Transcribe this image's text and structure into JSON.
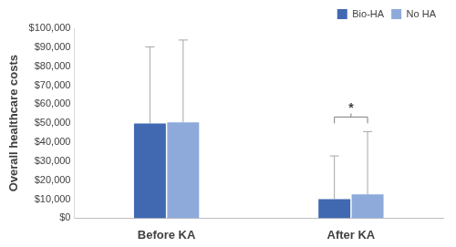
{
  "chart_data": {
    "type": "bar",
    "categories": [
      "Before KA",
      "After KA"
    ],
    "series": [
      {
        "name": "Bio-HA",
        "color": "#4169b2",
        "values": [
          49800,
          10000
        ],
        "errors": [
          40400,
          22800
        ]
      },
      {
        "name": "No HA",
        "color": "#8eaadb",
        "values": [
          50500,
          12600
        ],
        "errors": [
          43300,
          33000
        ]
      }
    ],
    "y_label": "Overall healthcare costs",
    "ylim": [
      0,
      100000
    ],
    "yticks": [
      {
        "value": 0,
        "label": "$0"
      },
      {
        "value": 10000,
        "label": "$10,000"
      },
      {
        "value": 20000,
        "label": "$20,000"
      },
      {
        "value": 30000,
        "label": "$30,000"
      },
      {
        "value": 40000,
        "label": "$40,000"
      },
      {
        "value": 50000,
        "label": "$50,000"
      },
      {
        "value": 60000,
        "label": "$60,000"
      },
      {
        "value": 70000,
        "label": "$70,000"
      },
      {
        "value": 80000,
        "label": "$80,000"
      },
      {
        "value": 90000,
        "label": "$90,000"
      },
      {
        "value": 100000,
        "label": "$100,000"
      }
    ],
    "grid": false,
    "legend": "upper right",
    "annotations": [
      {
        "text": "*",
        "category": "After KA",
        "between": [
          "Bio-HA",
          "No HA"
        ]
      }
    ]
  }
}
